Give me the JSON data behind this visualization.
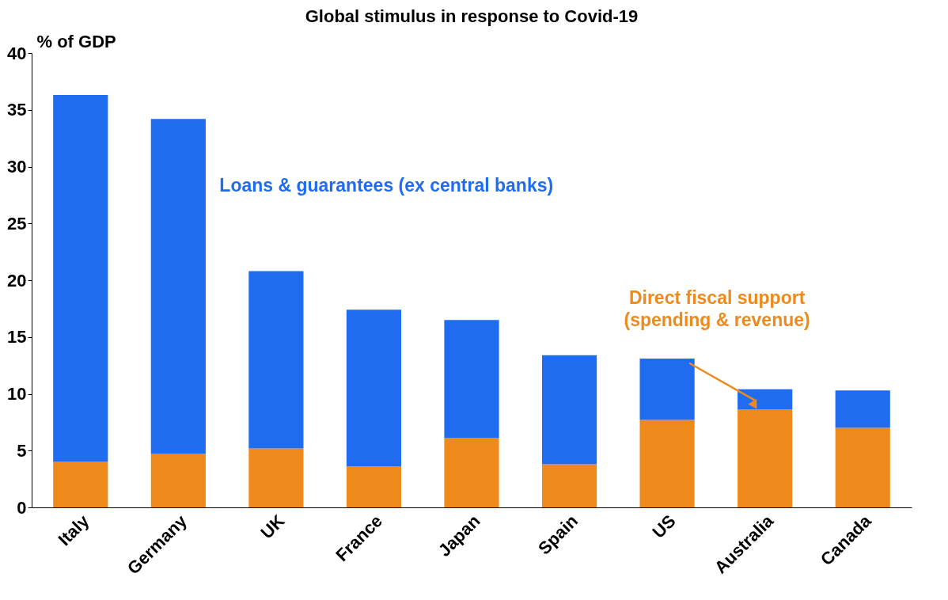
{
  "chart_data": {
    "type": "bar",
    "title": "Global stimulus in response to Covid-19",
    "ylabel": "% of GDP",
    "categories": [
      "Italy",
      "Germany",
      "UK",
      "France",
      "Japan",
      "Spain",
      "US",
      "Australia",
      "Canada"
    ],
    "stacked": true,
    "series": [
      {
        "name": "Direct fiscal support (spending & revenue)",
        "color": "#ee8a1c",
        "values": [
          4.0,
          4.7,
          5.2,
          3.6,
          6.1,
          3.8,
          7.7,
          8.6,
          7.0
        ]
      },
      {
        "name": "Loans & guarantees (ex central banks)",
        "color": "#1f6cf0",
        "values": [
          32.3,
          29.5,
          15.6,
          13.8,
          10.4,
          9.6,
          5.4,
          1.8,
          3.3
        ]
      }
    ],
    "ylim": [
      0,
      40
    ],
    "yticks": [
      0,
      5,
      10,
      15,
      20,
      25,
      30,
      35,
      40
    ],
    "grid": false,
    "legend": false
  }
}
